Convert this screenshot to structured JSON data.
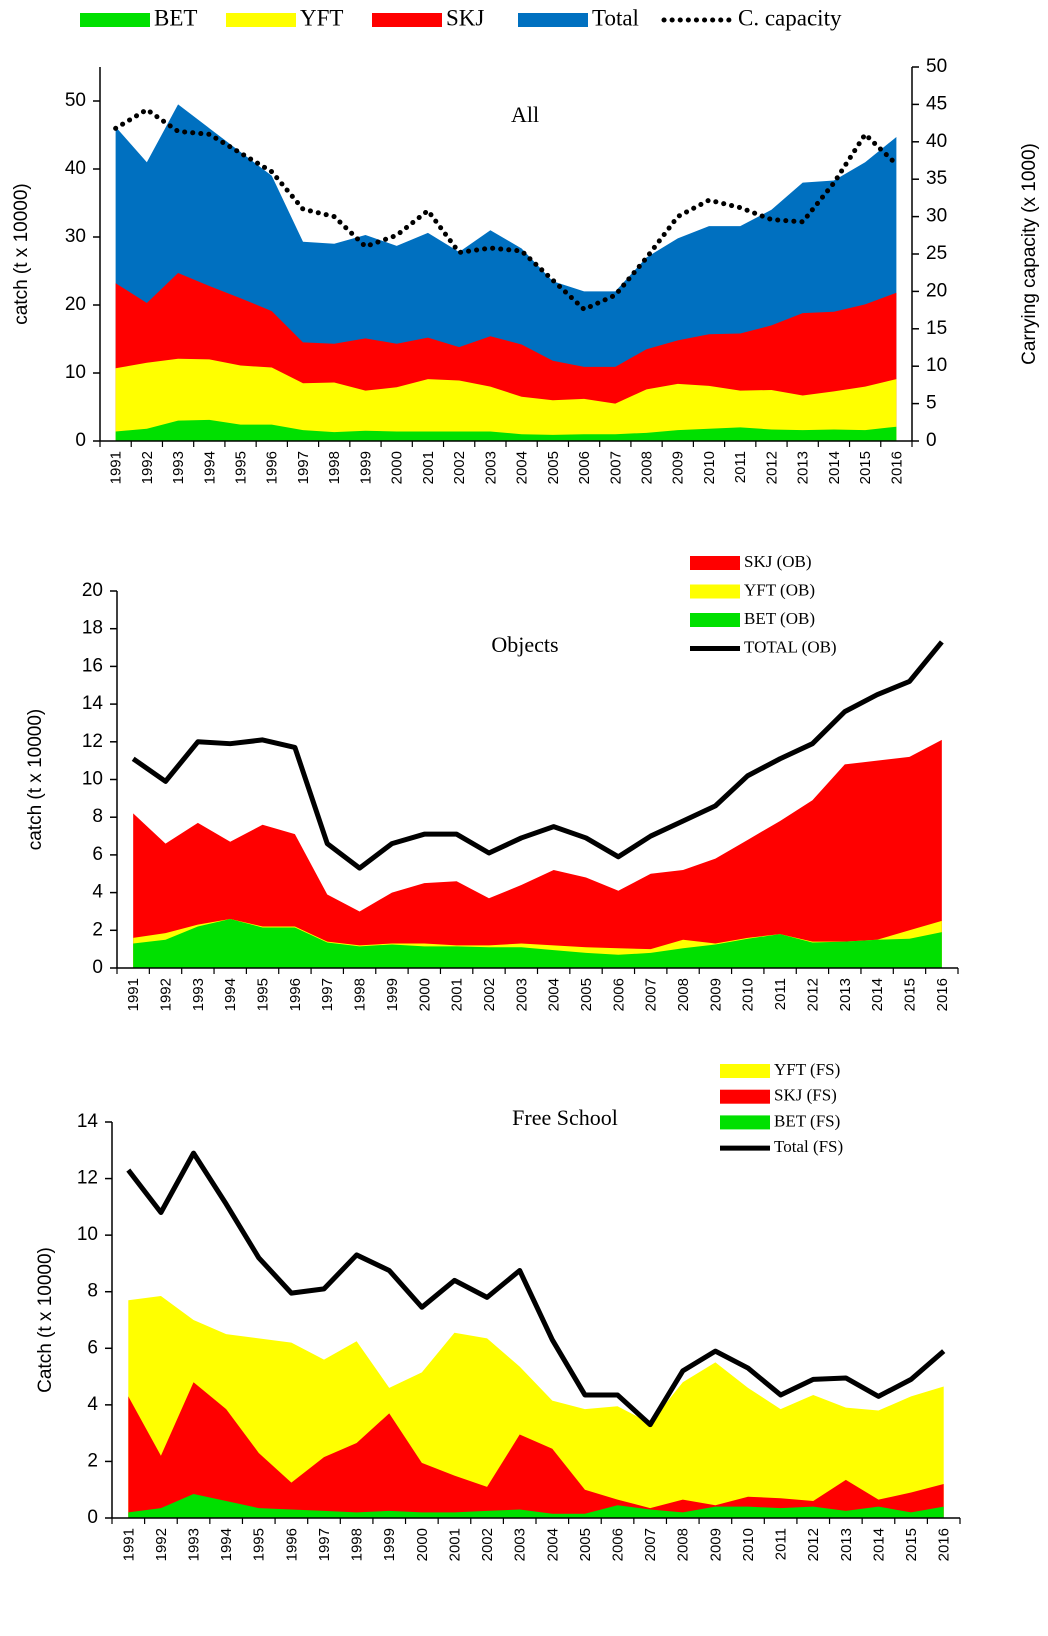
{
  "chart_data": [
    {
      "type": "area",
      "title": "All",
      "categories": [
        "1991",
        "1992",
        "1993",
        "1994",
        "1995",
        "1996",
        "1997",
        "1998",
        "1999",
        "2000",
        "2001",
        "2002",
        "2003",
        "2004",
        "2005",
        "2006",
        "2007",
        "2008",
        "2009",
        "2010",
        "2011",
        "2012",
        "2013",
        "2014",
        "2015",
        "2016"
      ],
      "ylabel": "catch (t x 10000)",
      "y2label": "Carrying capacity (x 1000)",
      "ylim": [
        0,
        55
      ],
      "yticks": [
        0,
        10,
        20,
        30,
        40,
        50
      ],
      "y2lim": [
        0,
        50
      ],
      "y2ticks": [
        0,
        5,
        10,
        15,
        20,
        25,
        30,
        35,
        40,
        45,
        50
      ],
      "legend": "top",
      "series": [
        {
          "name": "BET",
          "type": "area",
          "color": "#00e000",
          "values": [
            1.4,
            1.8,
            3.0,
            3.1,
            2.4,
            2.4,
            1.6,
            1.3,
            1.5,
            1.4,
            1.4,
            1.4,
            1.4,
            1.0,
            0.9,
            1.0,
            1.0,
            1.2,
            1.6,
            1.8,
            2.0,
            1.7,
            1.6,
            1.7,
            1.6,
            2.1
          ]
        },
        {
          "name": "YFT",
          "type": "area",
          "color": "#ffff00",
          "values": [
            10.7,
            11.5,
            12.1,
            12.0,
            11.1,
            10.8,
            8.5,
            8.6,
            7.4,
            7.9,
            9.1,
            8.9,
            8.0,
            6.5,
            6.0,
            6.2,
            5.5,
            7.6,
            8.4,
            8.1,
            7.4,
            7.5,
            6.7,
            7.3,
            8.0,
            9.1
          ]
        },
        {
          "name": "SKJ",
          "type": "area",
          "color": "#ff0000",
          "values": [
            23.2,
            20.3,
            24.7,
            22.8,
            21.0,
            19.1,
            14.5,
            14.3,
            15.1,
            14.3,
            15.2,
            13.8,
            15.4,
            14.2,
            11.8,
            10.9,
            10.9,
            13.5,
            14.8,
            15.7,
            15.8,
            17.0,
            18.8,
            19.0,
            20.1,
            21.8
          ]
        },
        {
          "name": "Total",
          "type": "area",
          "color": "#0070c0",
          "values": [
            46.2,
            41.0,
            49.5,
            46.0,
            42.5,
            39.0,
            29.3,
            29.0,
            30.3,
            28.7,
            30.6,
            27.8,
            31.0,
            28.3,
            23.5,
            22.0,
            22.0,
            27.0,
            29.8,
            31.6,
            31.6,
            34.0,
            38.0,
            38.3,
            41.0,
            44.7
          ]
        },
        {
          "name": "C. capacity",
          "type": "line",
          "axis": "y2",
          "dash": "dotted",
          "color": "#000000",
          "values": [
            41.8,
            44.3,
            41.4,
            41.0,
            38.5,
            36.0,
            31.0,
            30.0,
            26.0,
            27.5,
            30.8,
            25.2,
            25.8,
            25.4,
            21.5,
            17.6,
            19.5,
            24.5,
            30.0,
            32.2,
            31.2,
            29.6,
            29.3,
            34.5,
            41.0,
            37.0
          ]
        }
      ]
    },
    {
      "type": "area",
      "title": "Objects",
      "categories": [
        "1991",
        "1992",
        "1993",
        "1994",
        "1995",
        "1996",
        "1997",
        "1998",
        "1999",
        "2000",
        "2001",
        "2002",
        "2003",
        "2004",
        "2005",
        "2006",
        "2007",
        "2008",
        "2009",
        "2010",
        "2011",
        "2012",
        "2013",
        "2014",
        "2015",
        "2016"
      ],
      "ylabel": "catch (t x 10000)",
      "ylim": [
        0,
        20
      ],
      "yticks": [
        0,
        2,
        4,
        6,
        8,
        10,
        12,
        14,
        16,
        18,
        20
      ],
      "legend": "upper right",
      "series": [
        {
          "name": "SKJ (OB)",
          "type": "area",
          "color": "#ff0000",
          "values": [
            8.2,
            6.6,
            7.7,
            6.7,
            7.6,
            7.1,
            3.9,
            3.0,
            4.0,
            4.5,
            4.6,
            3.7,
            4.4,
            5.2,
            4.8,
            4.1,
            5.0,
            5.2,
            5.8,
            6.8,
            7.8,
            8.9,
            10.8,
            11.0,
            11.2,
            12.1
          ]
        },
        {
          "name": "YFT (OB)",
          "type": "area",
          "color": "#ffff00",
          "values": [
            1.6,
            1.85,
            2.3,
            2.6,
            2.2,
            2.2,
            1.4,
            1.2,
            1.3,
            1.3,
            1.2,
            1.2,
            1.3,
            1.2,
            1.1,
            1.05,
            1.0,
            1.5,
            1.3,
            1.6,
            1.8,
            1.4,
            1.4,
            1.5,
            2.0,
            2.5
          ]
        },
        {
          "name": "BET (OB)",
          "type": "area",
          "color": "#00e000",
          "values": [
            1.3,
            1.5,
            2.2,
            2.6,
            2.15,
            2.15,
            1.35,
            1.15,
            1.25,
            1.15,
            1.15,
            1.1,
            1.1,
            0.95,
            0.8,
            0.7,
            0.8,
            1.05,
            1.25,
            1.55,
            1.8,
            1.35,
            1.4,
            1.5,
            1.55,
            1.9
          ]
        },
        {
          "name": "TOTAL (OB)",
          "type": "line",
          "color": "#000000",
          "values": [
            11.1,
            9.9,
            12.0,
            11.9,
            12.1,
            11.7,
            6.6,
            5.3,
            6.6,
            7.1,
            7.1,
            6.1,
            6.9,
            7.5,
            6.9,
            5.9,
            7.0,
            7.8,
            8.6,
            10.2,
            11.1,
            11.9,
            13.6,
            14.5,
            15.2,
            17.3
          ]
        }
      ]
    },
    {
      "type": "area",
      "title": "Free School",
      "categories": [
        "1991",
        "1992",
        "1993",
        "1994",
        "1995",
        "1996",
        "1997",
        "1998",
        "1999",
        "2000",
        "2001",
        "2002",
        "2003",
        "2004",
        "2005",
        "2006",
        "2007",
        "2008",
        "2009",
        "2010",
        "2011",
        "2012",
        "2013",
        "2014",
        "2015",
        "2016"
      ],
      "ylabel": "Catch (t x 10000)",
      "ylim": [
        0,
        14
      ],
      "yticks": [
        0,
        2,
        4,
        6,
        8,
        10,
        12,
        14
      ],
      "legend": "upper right",
      "series": [
        {
          "name": "YFT (FS)",
          "type": "area",
          "color": "#ffff00",
          "values": [
            7.7,
            7.85,
            7.0,
            6.5,
            6.35,
            6.2,
            5.6,
            6.25,
            4.6,
            5.15,
            6.55,
            6.35,
            5.35,
            4.15,
            3.85,
            3.95,
            3.35,
            4.8,
            5.5,
            4.6,
            3.85,
            4.35,
            3.9,
            3.8,
            4.3,
            4.65
          ]
        },
        {
          "name": "SKJ (FS)",
          "type": "area",
          "color": "#ff0000",
          "values": [
            4.3,
            2.2,
            4.8,
            3.85,
            2.3,
            1.25,
            2.15,
            2.65,
            3.7,
            1.95,
            1.5,
            1.1,
            2.95,
            2.45,
            1.0,
            0.65,
            0.35,
            0.65,
            0.45,
            0.75,
            0.7,
            0.6,
            1.35,
            0.65,
            0.9,
            1.2
          ]
        },
        {
          "name": "BET (FS)",
          "type": "area",
          "color": "#00e000",
          "values": [
            0.2,
            0.35,
            0.85,
            0.6,
            0.35,
            0.3,
            0.25,
            0.2,
            0.25,
            0.2,
            0.2,
            0.25,
            0.3,
            0.15,
            0.15,
            0.45,
            0.3,
            0.2,
            0.4,
            0.4,
            0.35,
            0.4,
            0.25,
            0.4,
            0.2,
            0.4
          ]
        },
        {
          "name": "Total (FS)",
          "type": "line",
          "color": "#000000",
          "values": [
            12.3,
            10.8,
            12.9,
            11.1,
            9.2,
            7.95,
            8.1,
            9.3,
            8.75,
            7.45,
            8.4,
            7.8,
            8.75,
            6.3,
            4.35,
            4.35,
            3.3,
            5.2,
            5.9,
            5.3,
            4.35,
            4.9,
            4.95,
            4.3,
            4.9,
            5.9
          ]
        }
      ]
    }
  ]
}
